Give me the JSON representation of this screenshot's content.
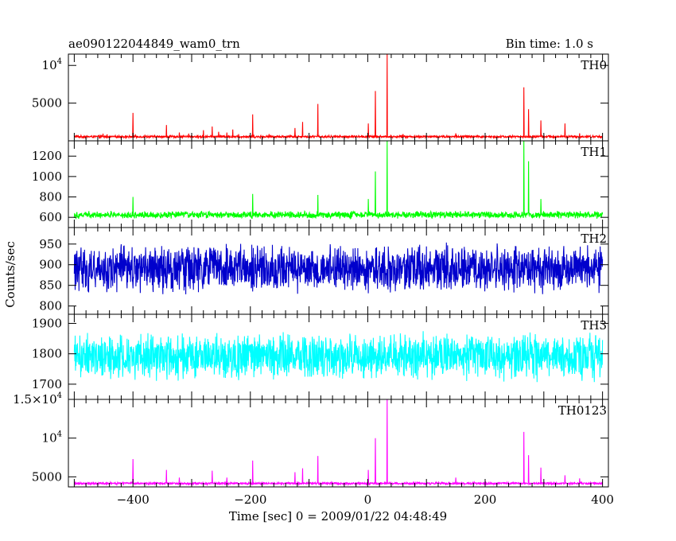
{
  "chart_data": {
    "type": "line",
    "title": "ae090122044849_wam0_trn",
    "subtitle": "Bin time: 1.0 s",
    "xlabel": "Time [sec] 0 = 2009/01/22 04:48:49",
    "ylabel": "Counts/sec",
    "xlim": [
      -510,
      410
    ],
    "xticks": [
      -400,
      -200,
      0,
      200,
      400
    ],
    "grid": false,
    "panels": [
      {
        "name": "TH0",
        "color": "#ff0000",
        "ylim": [
          0,
          11500
        ],
        "yticks": [
          {
            "value": 5000,
            "label": "5000"
          },
          {
            "value": 10000,
            "label": "10^4"
          }
        ],
        "baseline": 550,
        "noise": 180,
        "spikes": [
          {
            "x": -451,
            "y": 950
          },
          {
            "x": -444,
            "y": 850
          },
          {
            "x": -400,
            "y": 3700
          },
          {
            "x": -343,
            "y": 2100
          },
          {
            "x": -321,
            "y": 1100
          },
          {
            "x": -305,
            "y": 950
          },
          {
            "x": -280,
            "y": 1400
          },
          {
            "x": -265,
            "y": 1900
          },
          {
            "x": -254,
            "y": 1200
          },
          {
            "x": -240,
            "y": 1100
          },
          {
            "x": -230,
            "y": 1500
          },
          {
            "x": -220,
            "y": 900
          },
          {
            "x": -196,
            "y": 3500
          },
          {
            "x": -168,
            "y": 900
          },
          {
            "x": -124,
            "y": 1700
          },
          {
            "x": -111,
            "y": 2500
          },
          {
            "x": -85,
            "y": 4900
          },
          {
            "x": 1,
            "y": 2300
          },
          {
            "x": 13,
            "y": 6600
          },
          {
            "x": 33,
            "y": 11500
          },
          {
            "x": 60,
            "y": 900
          },
          {
            "x": 150,
            "y": 1000
          },
          {
            "x": 266,
            "y": 7100
          },
          {
            "x": 274,
            "y": 4200
          },
          {
            "x": 295,
            "y": 2700
          },
          {
            "x": 336,
            "y": 2300
          },
          {
            "x": 361,
            "y": 1000
          }
        ]
      },
      {
        "name": "TH1",
        "color": "#00ff00",
        "ylim": [
          500,
          1350
        ],
        "yticks": [
          {
            "value": 600,
            "label": "600"
          },
          {
            "value": 800,
            "label": "800"
          },
          {
            "value": 1000,
            "label": "1000"
          },
          {
            "value": 1200,
            "label": "1200"
          }
        ],
        "baseline": 625,
        "noise": 40,
        "spikes": [
          {
            "x": -400,
            "y": 800
          },
          {
            "x": -196,
            "y": 830
          },
          {
            "x": -85,
            "y": 820
          },
          {
            "x": 1,
            "y": 780
          },
          {
            "x": 13,
            "y": 1050
          },
          {
            "x": 33,
            "y": 1350
          },
          {
            "x": 266,
            "y": 1350
          },
          {
            "x": 274,
            "y": 1150
          },
          {
            "x": 295,
            "y": 780
          }
        ]
      },
      {
        "name": "TH2",
        "color": "#0000cc",
        "ylim": [
          780,
          990
        ],
        "yticks": [
          {
            "value": 800,
            "label": "800"
          },
          {
            "value": 850,
            "label": "850"
          },
          {
            "value": 900,
            "label": "900"
          },
          {
            "value": 950,
            "label": "950"
          }
        ],
        "baseline": 890,
        "noise": 65,
        "spikes": []
      },
      {
        "name": "TH3",
        "color": "#00ffff",
        "ylim": [
          1650,
          1930
        ],
        "yticks": [
          {
            "value": 1700,
            "label": "1700"
          },
          {
            "value": 1800,
            "label": "1800"
          },
          {
            "value": 1900,
            "label": "1900"
          }
        ],
        "baseline": 1790,
        "noise": 85,
        "spikes": []
      },
      {
        "name": "TH0123",
        "color": "#ff00ff",
        "ylim": [
          3700,
          15000
        ],
        "yticks": [
          {
            "value": 5000,
            "label": "5000"
          },
          {
            "value": 10000,
            "label": "10^4"
          },
          {
            "value": 15000,
            "label": "1.5×10^4"
          }
        ],
        "baseline": 4150,
        "noise": 170,
        "spikes": [
          {
            "x": -400,
            "y": 7300
          },
          {
            "x": -343,
            "y": 5900
          },
          {
            "x": -321,
            "y": 4900
          },
          {
            "x": -265,
            "y": 5800
          },
          {
            "x": -240,
            "y": 4900
          },
          {
            "x": -196,
            "y": 7100
          },
          {
            "x": -124,
            "y": 5600
          },
          {
            "x": -111,
            "y": 6100
          },
          {
            "x": -85,
            "y": 7700
          },
          {
            "x": 1,
            "y": 5900
          },
          {
            "x": 13,
            "y": 10000
          },
          {
            "x": 33,
            "y": 15000
          },
          {
            "x": 150,
            "y": 4900
          },
          {
            "x": 266,
            "y": 10800
          },
          {
            "x": 274,
            "y": 7800
          },
          {
            "x": 295,
            "y": 6200
          },
          {
            "x": 336,
            "y": 5200
          },
          {
            "x": 361,
            "y": 4800
          }
        ]
      }
    ]
  }
}
